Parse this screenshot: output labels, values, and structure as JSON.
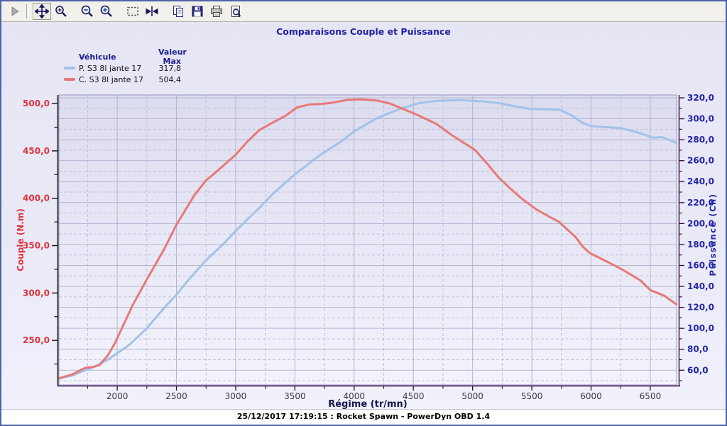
{
  "toolbar": {
    "buttons": [
      "play",
      "pan",
      "zoom-mode",
      "zoom-out",
      "zoom-in",
      "select-region",
      "fit-width",
      "copy",
      "save",
      "print",
      "print-preview"
    ],
    "active_button": "pan"
  },
  "legend": {
    "header_vehicle": "Véhicule",
    "header_value": "Valeur Max"
  },
  "footer": {
    "text": "25/12/2017 17:19:15 : Rocket Spawn - PowerDyn OBD 1.4"
  },
  "chart_data": {
    "type": "line",
    "title": "Comparaisons Couple et Puissance",
    "x_axis": {
      "label": "Régime (tr/mn)",
      "min": 1508,
      "max": 6722,
      "major_ticks": [
        2000,
        2500,
        3000,
        3500,
        4000,
        4500,
        5000,
        5500,
        6000,
        6500
      ],
      "minor_ticks": [
        1750,
        2250,
        2750,
        3250,
        3750,
        4250,
        4750,
        5250,
        5750,
        6250
      ],
      "label_color": "#3a3a3a",
      "title_color": "#16164a"
    },
    "left_axis": {
      "label": "Couple (N.m)",
      "min": 203,
      "max": 509,
      "major_ticks": [
        250,
        300,
        350,
        400,
        450,
        500
      ],
      "minor_ticks": [
        225,
        275,
        325,
        375,
        425,
        475
      ],
      "color": "#e0323c"
    },
    "right_axis": {
      "label": "Puissance (Ch)",
      "min": 46,
      "max": 322.7,
      "major_ticks": [
        60,
        80,
        100,
        120,
        140,
        160,
        180,
        200,
        220,
        240,
        260,
        280,
        300,
        320
      ],
      "minor_ticks": [
        50,
        70,
        90,
        110,
        130,
        150,
        170,
        190,
        210,
        230,
        250,
        270,
        290,
        310
      ],
      "color": "#2626a6"
    },
    "grid": {
      "h_aligned_to": "right_axis",
      "solid_color": "#b4b4d2",
      "dashed_color": "#c0c0da"
    },
    "series": [
      {
        "name": "P. S3 8l jante 17",
        "axis": "right",
        "color": "#a2c2e8",
        "max_label": "317,8",
        "points": [
          [
            1508,
            52
          ],
          [
            1620,
            55
          ],
          [
            1730,
            60
          ],
          [
            1800,
            63
          ],
          [
            1920,
            70
          ],
          [
            2100,
            84
          ],
          [
            2250,
            100
          ],
          [
            2400,
            120
          ],
          [
            2500,
            132
          ],
          [
            2600,
            146
          ],
          [
            2750,
            165
          ],
          [
            2900,
            181
          ],
          [
            3000,
            193
          ],
          [
            3200,
            215
          ],
          [
            3320,
            229
          ],
          [
            3500,
            247
          ],
          [
            3720,
            266
          ],
          [
            3900,
            279
          ],
          [
            4000,
            288
          ],
          [
            4200,
            301
          ],
          [
            4400,
            310
          ],
          [
            4550,
            315
          ],
          [
            4700,
            317
          ],
          [
            4900,
            317.8
          ],
          [
            5100,
            316.5
          ],
          [
            5220,
            315
          ],
          [
            5350,
            312
          ],
          [
            5480,
            309.5
          ],
          [
            5620,
            309
          ],
          [
            5740,
            308.5
          ],
          [
            5840,
            303
          ],
          [
            5930,
            296
          ],
          [
            6000,
            293
          ],
          [
            6120,
            292
          ],
          [
            6260,
            291
          ],
          [
            6420,
            286
          ],
          [
            6520,
            282
          ],
          [
            6600,
            282.5
          ],
          [
            6720,
            277
          ]
        ]
      },
      {
        "name": "C. S3 8l jante 17",
        "axis": "left",
        "color": "#e87878",
        "max_label": "504,4",
        "points": [
          [
            1508,
            210
          ],
          [
            1620,
            214
          ],
          [
            1730,
            221
          ],
          [
            1800,
            222
          ],
          [
            1850,
            224
          ],
          [
            1920,
            234
          ],
          [
            1980,
            247
          ],
          [
            2130,
            287
          ],
          [
            2240,
            312
          ],
          [
            2400,
            347
          ],
          [
            2500,
            372
          ],
          [
            2650,
            403
          ],
          [
            2750,
            419
          ],
          [
            2820,
            426
          ],
          [
            3000,
            446
          ],
          [
            3100,
            460
          ],
          [
            3200,
            472
          ],
          [
            3300,
            479
          ],
          [
            3420,
            487
          ],
          [
            3520,
            496
          ],
          [
            3620,
            499
          ],
          [
            3720,
            499.5
          ],
          [
            3820,
            501
          ],
          [
            3950,
            504
          ],
          [
            4050,
            504.4
          ],
          [
            4200,
            503
          ],
          [
            4300,
            500
          ],
          [
            4400,
            495
          ],
          [
            4550,
            487
          ],
          [
            4700,
            478
          ],
          [
            4820,
            467
          ],
          [
            5020,
            451
          ],
          [
            5120,
            437
          ],
          [
            5220,
            422
          ],
          [
            5320,
            410
          ],
          [
            5420,
            399
          ],
          [
            5540,
            388
          ],
          [
            5640,
            381
          ],
          [
            5730,
            375
          ],
          [
            5800,
            367
          ],
          [
            5870,
            359
          ],
          [
            5930,
            349
          ],
          [
            5990,
            342
          ],
          [
            6120,
            334
          ],
          [
            6260,
            325
          ],
          [
            6420,
            313
          ],
          [
            6500,
            303
          ],
          [
            6560,
            300
          ],
          [
            6620,
            297
          ],
          [
            6720,
            288
          ]
        ]
      }
    ]
  }
}
